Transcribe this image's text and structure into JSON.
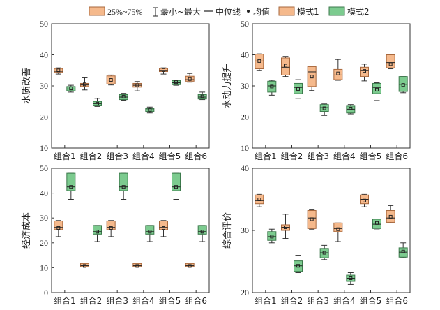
{
  "legend": {
    "iqr_label": "25%~75%",
    "range_label": "最小~最大",
    "median_label": "中位线",
    "mean_label": "均值",
    "series1_label": "模式1",
    "series2_label": "模式2"
  },
  "colors": {
    "series1_fill": "#f5b98c",
    "series1_edge": "#a7673c",
    "series2_fill": "#7ccb8f",
    "series2_edge": "#3c7a4c",
    "axis": "#333333"
  },
  "chart_data": [
    {
      "type": "box",
      "ylabel": "水质改善",
      "ylim": [
        10,
        50
      ],
      "yticks": [
        10,
        20,
        30,
        40,
        50
      ],
      "categories": [
        "组合1",
        "组合2",
        "组合3",
        "组合4",
        "组合5",
        "组合6"
      ],
      "series": [
        {
          "name": "模式1",
          "boxes": [
            {
              "min": 33.8,
              "q1": 34.3,
              "median": 34.7,
              "q3": 35.6,
              "max": 35.8,
              "mean": 35.0
            },
            {
              "min": 28.7,
              "q1": 29.8,
              "median": 30.3,
              "q3": 30.8,
              "max": 32.6,
              "mean": 30.5
            },
            {
              "min": 30.3,
              "q1": 30.6,
              "median": 31.9,
              "q3": 33.2,
              "max": 33.5,
              "mean": 31.9
            },
            {
              "min": 28.4,
              "q1": 29.6,
              "median": 30.2,
              "q3": 30.8,
              "max": 31.4,
              "mean": 30.2
            },
            {
              "min": 33.8,
              "q1": 34.6,
              "median": 35.0,
              "q3": 35.6,
              "max": 35.8,
              "mean": 35.1
            },
            {
              "min": 31.2,
              "q1": 31.5,
              "median": 32.0,
              "q3": 33.1,
              "max": 34.0,
              "mean": 32.2
            }
          ]
        },
        {
          "name": "模式2",
          "boxes": [
            {
              "min": 28.0,
              "q1": 28.4,
              "median": 29.0,
              "q3": 29.8,
              "max": 30.2,
              "mean": 29.2
            },
            {
              "min": 23.4,
              "q1": 23.6,
              "median": 24.3,
              "q3": 25.0,
              "max": 26.0,
              "mean": 24.3
            },
            {
              "min": 25.4,
              "q1": 25.6,
              "median": 26.4,
              "q3": 27.2,
              "max": 27.6,
              "mean": 26.5
            },
            {
              "min": 21.3,
              "q1": 21.8,
              "median": 22.3,
              "q3": 22.7,
              "max": 23.2,
              "mean": 22.3
            },
            {
              "min": 30.2,
              "q1": 30.4,
              "median": 31.0,
              "q3": 31.7,
              "max": 31.8,
              "mean": 31.2
            },
            {
              "min": 25.6,
              "q1": 25.8,
              "median": 26.4,
              "q3": 27.2,
              "max": 28.0,
              "mean": 26.6
            }
          ]
        }
      ]
    },
    {
      "type": "box",
      "ylabel": "水动力提升",
      "ylim": [
        10,
        50
      ],
      "yticks": [
        10,
        20,
        30,
        40,
        50
      ],
      "categories": [
        "组合1",
        "组合2",
        "组合3",
        "组合4",
        "组合5",
        "组合6"
      ],
      "series": [
        {
          "name": "模式1",
          "boxes": [
            {
              "min": 35.0,
              "q1": 35.5,
              "median": 38.0,
              "q3": 40.2,
              "max": 40.3,
              "mean": 38.0
            },
            {
              "min": 33.0,
              "q1": 33.5,
              "median": 36.0,
              "q3": 39.0,
              "max": 39.5,
              "mean": 36.5
            },
            {
              "min": 28.5,
              "q1": 29.8,
              "median": 34.5,
              "q3": 36.2,
              "max": 36.3,
              "mean": 33.0
            },
            {
              "min": 31.8,
              "q1": 32.0,
              "median": 33.5,
              "q3": 35.3,
              "max": 38.5,
              "mean": 34.0
            },
            {
              "min": 31.6,
              "q1": 33.0,
              "median": 35.0,
              "q3": 36.0,
              "max": 37.0,
              "mean": 34.8
            },
            {
              "min": 35.5,
              "q1": 35.8,
              "median": 37.5,
              "q3": 40.0,
              "max": 40.2,
              "mean": 37.0
            }
          ]
        },
        {
          "name": "模式2",
          "boxes": [
            {
              "min": 27.0,
              "q1": 28.0,
              "median": 30.0,
              "q3": 31.5,
              "max": 31.8,
              "mean": 29.8
            },
            {
              "min": 26.0,
              "q1": 27.5,
              "median": 29.5,
              "q3": 30.8,
              "max": 32.0,
              "mean": 29.0
            },
            {
              "min": 20.5,
              "q1": 21.8,
              "median": 23.0,
              "q3": 24.0,
              "max": 24.2,
              "mean": 22.8
            },
            {
              "min": 21.0,
              "q1": 21.3,
              "median": 22.5,
              "q3": 23.5,
              "max": 24.0,
              "mean": 22.7
            },
            {
              "min": 25.3,
              "q1": 27.5,
              "median": 29.5,
              "q3": 30.8,
              "max": 31.0,
              "mean": 28.8
            },
            {
              "min": 27.8,
              "q1": 28.2,
              "median": 30.5,
              "q3": 33.0,
              "max": 33.0,
              "mean": 30.3
            }
          ]
        }
      ]
    },
    {
      "type": "box",
      "ylabel": "经济成本",
      "ylim": [
        0,
        50
      ],
      "yticks": [
        0,
        10,
        20,
        30,
        40,
        50
      ],
      "categories": [
        "组合1",
        "组合2",
        "组合3",
        "组合4",
        "组合5",
        "组合6"
      ],
      "series": [
        {
          "name": "模式1",
          "boxes": [
            {
              "min": 22.5,
              "q1": 25.3,
              "median": 26.2,
              "q3": 28.8,
              "max": 29.0,
              "mean": 26.0
            },
            {
              "min": 10.3,
              "q1": 10.4,
              "median": 10.8,
              "q3": 11.7,
              "max": 11.8,
              "mean": 10.7
            },
            {
              "min": 22.5,
              "q1": 25.3,
              "median": 26.2,
              "q3": 28.8,
              "max": 29.0,
              "mean": 26.0
            },
            {
              "min": 10.3,
              "q1": 10.4,
              "median": 10.8,
              "q3": 11.7,
              "max": 11.8,
              "mean": 10.7
            },
            {
              "min": 22.5,
              "q1": 25.3,
              "median": 26.2,
              "q3": 28.8,
              "max": 29.0,
              "mean": 26.0
            },
            {
              "min": 10.3,
              "q1": 10.4,
              "median": 10.8,
              "q3": 11.7,
              "max": 11.8,
              "mean": 10.7
            }
          ]
        },
        {
          "name": "模式2",
          "boxes": [
            {
              "min": 37.5,
              "q1": 41.0,
              "median": 42.5,
              "q3": 48.0,
              "max": 48.0,
              "mean": 42.5
            },
            {
              "min": 20.5,
              "q1": 23.5,
              "median": 24.5,
              "q3": 27.0,
              "max": 27.0,
              "mean": 24.5
            },
            {
              "min": 37.5,
              "q1": 41.0,
              "median": 42.5,
              "q3": 48.0,
              "max": 48.0,
              "mean": 42.5
            },
            {
              "min": 20.5,
              "q1": 23.5,
              "median": 24.5,
              "q3": 27.0,
              "max": 27.0,
              "mean": 24.5
            },
            {
              "min": 37.5,
              "q1": 41.0,
              "median": 42.5,
              "q3": 48.0,
              "max": 48.0,
              "mean": 42.5
            },
            {
              "min": 20.5,
              "q1": 23.5,
              "median": 24.5,
              "q3": 27.0,
              "max": 27.0,
              "mean": 24.5
            }
          ]
        }
      ]
    },
    {
      "type": "box",
      "ylabel": "综合评价",
      "ylim": [
        20,
        40
      ],
      "yticks": [
        20,
        30,
        40
      ],
      "categories": [
        "组合1",
        "组合2",
        "组合3",
        "组合4",
        "组合5",
        "组合6"
      ],
      "series": [
        {
          "name": "模式1",
          "boxes": [
            {
              "min": 33.8,
              "q1": 34.3,
              "median": 34.8,
              "q3": 35.7,
              "max": 35.8,
              "mean": 35.0
            },
            {
              "min": 28.7,
              "q1": 30.0,
              "median": 30.5,
              "q3": 30.9,
              "max": 32.6,
              "mean": 30.5
            },
            {
              "min": 30.2,
              "q1": 30.3,
              "median": 32.0,
              "q3": 33.2,
              "max": 33.3,
              "mean": 31.8
            },
            {
              "min": 28.2,
              "q1": 29.8,
              "median": 30.3,
              "q3": 31.2,
              "max": 31.2,
              "mean": 30.2
            },
            {
              "min": 33.8,
              "q1": 34.3,
              "median": 35.0,
              "q3": 35.7,
              "max": 35.8,
              "mean": 34.8
            },
            {
              "min": 31.2,
              "q1": 31.3,
              "median": 32.0,
              "q3": 33.2,
              "max": 34.0,
              "mean": 32.2
            }
          ]
        },
        {
          "name": "模式2",
          "boxes": [
            {
              "min": 28.0,
              "q1": 28.4,
              "median": 29.0,
              "q3": 29.8,
              "max": 30.2,
              "mean": 29.0
            },
            {
              "min": 23.2,
              "q1": 23.4,
              "median": 24.3,
              "q3": 25.1,
              "max": 26.0,
              "mean": 24.3
            },
            {
              "min": 25.3,
              "q1": 25.6,
              "median": 26.4,
              "q3": 27.1,
              "max": 27.6,
              "mean": 26.4
            },
            {
              "min": 21.3,
              "q1": 21.8,
              "median": 22.3,
              "q3": 22.8,
              "max": 23.2,
              "mean": 22.3
            },
            {
              "min": 30.1,
              "q1": 30.3,
              "median": 31.0,
              "q3": 31.8,
              "max": 31.8,
              "mean": 31.2
            },
            {
              "min": 25.6,
              "q1": 25.7,
              "median": 26.5,
              "q3": 27.2,
              "max": 28.0,
              "mean": 26.6
            }
          ]
        }
      ]
    }
  ]
}
